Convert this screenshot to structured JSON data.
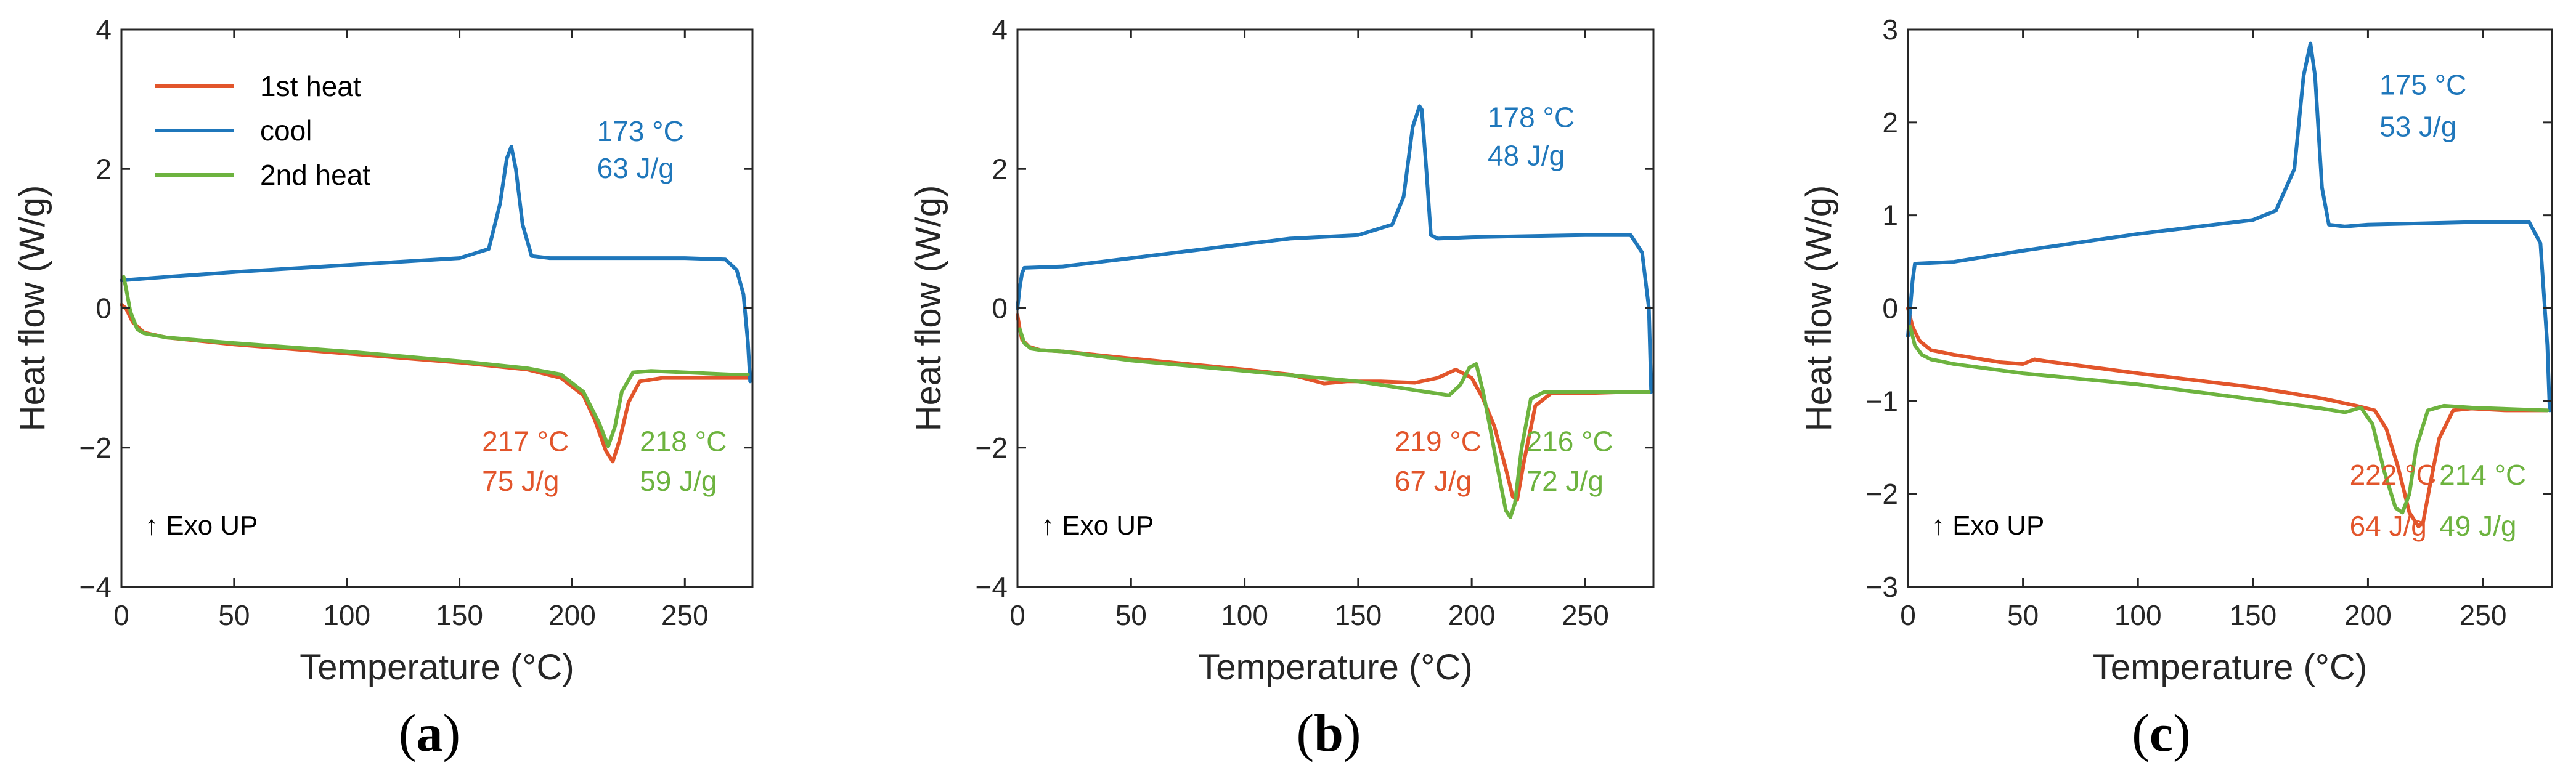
{
  "colors": {
    "heat1": "#E2552B",
    "cool": "#1F77BB",
    "heat2": "#6DB33F",
    "axis": "#262626"
  },
  "legend": {
    "heat1": "1st heat",
    "cool": "cool",
    "heat2": "2nd heat"
  },
  "exo_label": "↑ Exo UP",
  "chart_data": [
    {
      "id": "a",
      "panel_label": "a",
      "type": "line",
      "xlabel": "Temperature (°C)",
      "ylabel": "Heat flow (W/g)",
      "xlim": [
        0,
        280
      ],
      "ylim": [
        -4,
        4
      ],
      "xticks": [
        0,
        50,
        100,
        150,
        200,
        250
      ],
      "yticks": [
        -4,
        -2,
        0,
        2,
        4
      ],
      "xtick_labels": [
        "0",
        "50",
        "100",
        "150",
        "200",
        "250"
      ],
      "ytick_labels": [
        "−4",
        "−2",
        "0",
        "2",
        "4"
      ],
      "show_legend": true,
      "series": [
        {
          "name": "1st heat",
          "color_key": "heat1",
          "x": [
            0,
            2,
            5,
            10,
            20,
            50,
            100,
            150,
            180,
            195,
            205,
            210,
            215,
            218,
            221,
            225,
            230,
            240,
            260,
            278
          ],
          "y": [
            0.05,
            0.0,
            -0.2,
            -0.35,
            -0.42,
            -0.52,
            -0.65,
            -0.78,
            -0.88,
            -1.0,
            -1.25,
            -1.6,
            -2.05,
            -2.2,
            -1.9,
            -1.35,
            -1.05,
            -1.0,
            -1.0,
            -1.0
          ]
        },
        {
          "name": "cool",
          "color_key": "cool",
          "x": [
            0,
            20,
            50,
            100,
            150,
            163,
            168,
            171,
            173,
            175,
            178,
            182,
            190,
            220,
            250,
            268,
            273,
            276,
            278,
            279
          ],
          "y": [
            0.4,
            0.45,
            0.52,
            0.62,
            0.72,
            0.85,
            1.5,
            2.15,
            2.32,
            2.0,
            1.2,
            0.75,
            0.72,
            0.72,
            0.72,
            0.7,
            0.55,
            0.2,
            -0.5,
            -1.05
          ]
        },
        {
          "name": "2nd heat",
          "color_key": "heat2",
          "x": [
            1,
            2,
            4,
            7,
            10,
            20,
            50,
            100,
            150,
            180,
            195,
            205,
            212,
            216,
            219,
            222,
            227,
            235,
            250,
            270,
            278
          ],
          "y": [
            0.45,
            0.3,
            -0.05,
            -0.3,
            -0.36,
            -0.42,
            -0.5,
            -0.62,
            -0.76,
            -0.86,
            -0.95,
            -1.2,
            -1.65,
            -1.98,
            -1.7,
            -1.2,
            -0.92,
            -0.9,
            -0.92,
            -0.95,
            -0.95
          ]
        }
      ],
      "annotations": [
        {
          "key": "cool_temp",
          "text": "173 °C",
          "color_key": "cool",
          "x": 211,
          "y": 2.4
        },
        {
          "key": "cool_enth",
          "text": "63 J/g",
          "color_key": "cool",
          "x": 211,
          "y": 1.87
        },
        {
          "key": "h1_temp",
          "text": "217 °C",
          "color_key": "heat1",
          "x": 160,
          "y": -2.05
        },
        {
          "key": "h1_enth",
          "text": "75 J/g",
          "color_key": "heat1",
          "x": 160,
          "y": -2.62
        },
        {
          "key": "h2_temp",
          "text": "218 °C",
          "color_key": "heat2",
          "x": 230,
          "y": -2.05
        },
        {
          "key": "h2_enth",
          "text": "59 J/g",
          "color_key": "heat2",
          "x": 230,
          "y": -2.62
        }
      ]
    },
    {
      "id": "b",
      "panel_label": "b",
      "type": "line",
      "xlabel": "Temperature (°C)",
      "ylabel": "Heat flow (W/g)",
      "xlim": [
        0,
        280
      ],
      "ylim": [
        -4,
        4
      ],
      "xticks": [
        0,
        50,
        100,
        150,
        200,
        250
      ],
      "yticks": [
        -4,
        -2,
        0,
        2,
        4
      ],
      "xtick_labels": [
        "0",
        "50",
        "100",
        "150",
        "200",
        "250"
      ],
      "ytick_labels": [
        "−4",
        "−2",
        "0",
        "2",
        "4"
      ],
      "show_legend": false,
      "series": [
        {
          "name": "1st heat",
          "color_key": "heat1",
          "x": [
            0,
            1,
            2,
            5,
            10,
            20,
            50,
            100,
            120,
            135,
            145,
            160,
            175,
            185,
            193,
            200,
            205,
            210,
            215,
            218,
            220,
            223,
            228,
            235,
            250,
            270,
            278
          ],
          "y": [
            -0.1,
            -0.3,
            -0.45,
            -0.55,
            -0.6,
            -0.62,
            -0.72,
            -0.88,
            -0.95,
            -1.08,
            -1.05,
            -1.05,
            -1.07,
            -1.0,
            -0.88,
            -1.0,
            -1.3,
            -1.7,
            -2.3,
            -2.7,
            -2.75,
            -2.2,
            -1.4,
            -1.22,
            -1.22,
            -1.2,
            -1.2
          ]
        },
        {
          "name": "cool",
          "color_key": "cool",
          "x": [
            0,
            1,
            2,
            3,
            20,
            50,
            100,
            120,
            150,
            165,
            170,
            174,
            177,
            178,
            180,
            182,
            185,
            200,
            250,
            270,
            275,
            278,
            279
          ],
          "y": [
            0.0,
            0.3,
            0.5,
            0.58,
            0.6,
            0.72,
            0.92,
            1.0,
            1.05,
            1.2,
            1.6,
            2.6,
            2.9,
            2.85,
            2.0,
            1.05,
            1.0,
            1.02,
            1.05,
            1.05,
            0.8,
            0.0,
            -1.2
          ]
        },
        {
          "name": "2nd heat",
          "color_key": "heat2",
          "x": [
            1,
            3,
            6,
            10,
            20,
            50,
            100,
            150,
            180,
            190,
            195,
            199,
            202,
            205,
            208,
            212,
            215,
            217,
            219,
            222,
            226,
            232,
            245,
            260,
            278
          ],
          "y": [
            -0.3,
            -0.5,
            -0.58,
            -0.6,
            -0.62,
            -0.75,
            -0.9,
            -1.05,
            -1.2,
            -1.25,
            -1.1,
            -0.85,
            -0.8,
            -1.2,
            -1.7,
            -2.4,
            -2.9,
            -3.0,
            -2.8,
            -2.0,
            -1.3,
            -1.2,
            -1.2,
            -1.2,
            -1.2
          ]
        }
      ],
      "annotations": [
        {
          "key": "cool_temp",
          "text": "178 °C",
          "color_key": "cool",
          "x": 207,
          "y": 2.6
        },
        {
          "key": "cool_enth",
          "text": "48 J/g",
          "color_key": "cool",
          "x": 207,
          "y": 2.05
        },
        {
          "key": "h1_temp",
          "text": "219 °C",
          "color_key": "heat1",
          "x": 166,
          "y": -2.05
        },
        {
          "key": "h1_enth",
          "text": "67 J/g",
          "color_key": "heat1",
          "x": 166,
          "y": -2.62
        },
        {
          "key": "h2_temp",
          "text": "216 °C",
          "color_key": "heat2",
          "x": 224,
          "y": -2.05
        },
        {
          "key": "h2_enth",
          "text": "72 J/g",
          "color_key": "heat2",
          "x": 224,
          "y": -2.62
        }
      ]
    },
    {
      "id": "c",
      "panel_label": "c",
      "type": "line",
      "xlabel": "Temperature (°C)",
      "ylabel": "Heat flow (W/g)",
      "xlim": [
        0,
        280
      ],
      "ylim": [
        -3,
        3
      ],
      "xticks": [
        0,
        50,
        100,
        150,
        200,
        250
      ],
      "yticks": [
        -3,
        -2,
        -1,
        0,
        1,
        2,
        3
      ],
      "xtick_labels": [
        "0",
        "50",
        "100",
        "150",
        "200",
        "250"
      ],
      "ytick_labels": [
        "−3",
        "−2",
        "−1",
        "0",
        "1",
        "2",
        "3"
      ],
      "show_legend": false,
      "series": [
        {
          "name": "1st heat",
          "color_key": "heat1",
          "x": [
            0,
            2,
            5,
            10,
            20,
            40,
            50,
            55,
            60,
            100,
            150,
            180,
            195,
            203,
            208,
            213,
            218,
            222,
            224,
            227,
            231,
            237,
            245,
            260,
            278
          ],
          "y": [
            0.0,
            -0.2,
            -0.35,
            -0.45,
            -0.5,
            -0.58,
            -0.6,
            -0.55,
            -0.57,
            -0.7,
            -0.85,
            -0.97,
            -1.05,
            -1.1,
            -1.3,
            -1.7,
            -2.2,
            -2.35,
            -2.3,
            -1.9,
            -1.4,
            -1.1,
            -1.08,
            -1.1,
            -1.1
          ]
        },
        {
          "name": "cool",
          "color_key": "cool",
          "x": [
            0,
            1,
            2,
            3,
            20,
            50,
            100,
            150,
            160,
            168,
            172,
            175,
            177,
            180,
            183,
            190,
            200,
            250,
            270,
            275,
            278,
            279
          ],
          "y": [
            -0.3,
            0.0,
            0.3,
            0.48,
            0.5,
            0.62,
            0.8,
            0.95,
            1.05,
            1.5,
            2.5,
            2.85,
            2.5,
            1.3,
            0.9,
            0.88,
            0.9,
            0.93,
            0.93,
            0.7,
            -0.4,
            -1.1
          ]
        },
        {
          "name": "2nd heat",
          "color_key": "heat2",
          "x": [
            1,
            3,
            6,
            10,
            20,
            50,
            100,
            150,
            180,
            190,
            197,
            202,
            207,
            212,
            215,
            218,
            221,
            226,
            233,
            245,
            278
          ],
          "y": [
            -0.2,
            -0.4,
            -0.5,
            -0.55,
            -0.6,
            -0.7,
            -0.82,
            -0.98,
            -1.08,
            -1.12,
            -1.07,
            -1.25,
            -1.75,
            -2.15,
            -2.2,
            -2.0,
            -1.5,
            -1.1,
            -1.05,
            -1.07,
            -1.1
          ]
        }
      ],
      "annotations": [
        {
          "key": "cool_temp",
          "text": "175 °C",
          "color_key": "cool",
          "x": 205,
          "y": 2.3
        },
        {
          "key": "cool_enth",
          "text": "53 J/g",
          "color_key": "cool",
          "x": 205,
          "y": 1.85
        },
        {
          "key": "h1_temp",
          "text": "222 °C",
          "color_key": "heat1",
          "x": 192,
          "y": -1.9
        },
        {
          "key": "h1_enth",
          "text": "64 J/g",
          "color_key": "heat1",
          "x": 192,
          "y": -2.45
        },
        {
          "key": "h2_temp",
          "text": "214 °C",
          "color_key": "heat2",
          "x": 231,
          "y": -1.9
        },
        {
          "key": "h2_enth",
          "text": "49 J/g",
          "color_key": "heat2",
          "x": 231,
          "y": -2.45
        }
      ]
    }
  ]
}
